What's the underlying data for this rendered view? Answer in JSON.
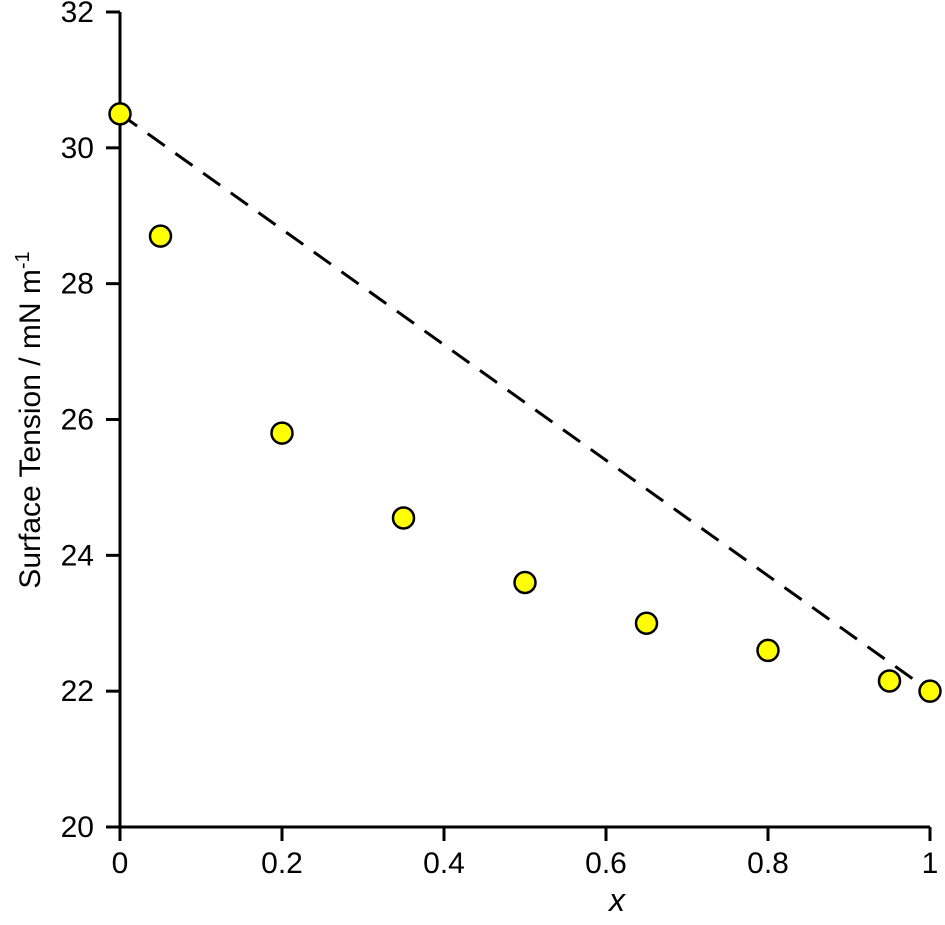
{
  "figure": {
    "background": "#ffffff"
  },
  "axes": {
    "xlabel": "x",
    "ylabel_main": "Surface Tension / mN m",
    "ylabel_sup": "-1"
  },
  "chart_data": {
    "type": "scatter",
    "title": "",
    "xlabel": "x",
    "ylabel": "Surface Tension / mN m^-1",
    "xlim": [
      0,
      1
    ],
    "ylim": [
      20,
      32
    ],
    "xticks": [
      0,
      0.2,
      0.4,
      0.6,
      0.8,
      1
    ],
    "xtick_labels": [
      "0",
      "0.2",
      "0.4",
      "0.6",
      "0.8",
      "1"
    ],
    "yticks": [
      20,
      22,
      24,
      26,
      28,
      30,
      32
    ],
    "ytick_labels": [
      "20",
      "22",
      "24",
      "26",
      "28",
      "30",
      "32"
    ],
    "grid": false,
    "legend": false,
    "axis_color": "#000000",
    "series": [
      {
        "name": "ideal-mixing-dashed-line",
        "type": "line",
        "line_style": "dashed",
        "color": "#000000",
        "points": [
          [
            0,
            30.5
          ],
          [
            1,
            22.0
          ]
        ]
      },
      {
        "name": "surface-tension-data-points",
        "type": "scatter",
        "marker": "circle",
        "marker_fill": "#ffff00",
        "marker_edge": "#000000",
        "points": [
          [
            0,
            30.5
          ],
          [
            0.05,
            28.7
          ],
          [
            0.2,
            25.8
          ],
          [
            0.35,
            24.55
          ],
          [
            0.5,
            23.6
          ],
          [
            0.65,
            23.0
          ],
          [
            0.8,
            22.6
          ],
          [
            0.95,
            22.15
          ],
          [
            1.0,
            22.0
          ]
        ]
      }
    ]
  }
}
